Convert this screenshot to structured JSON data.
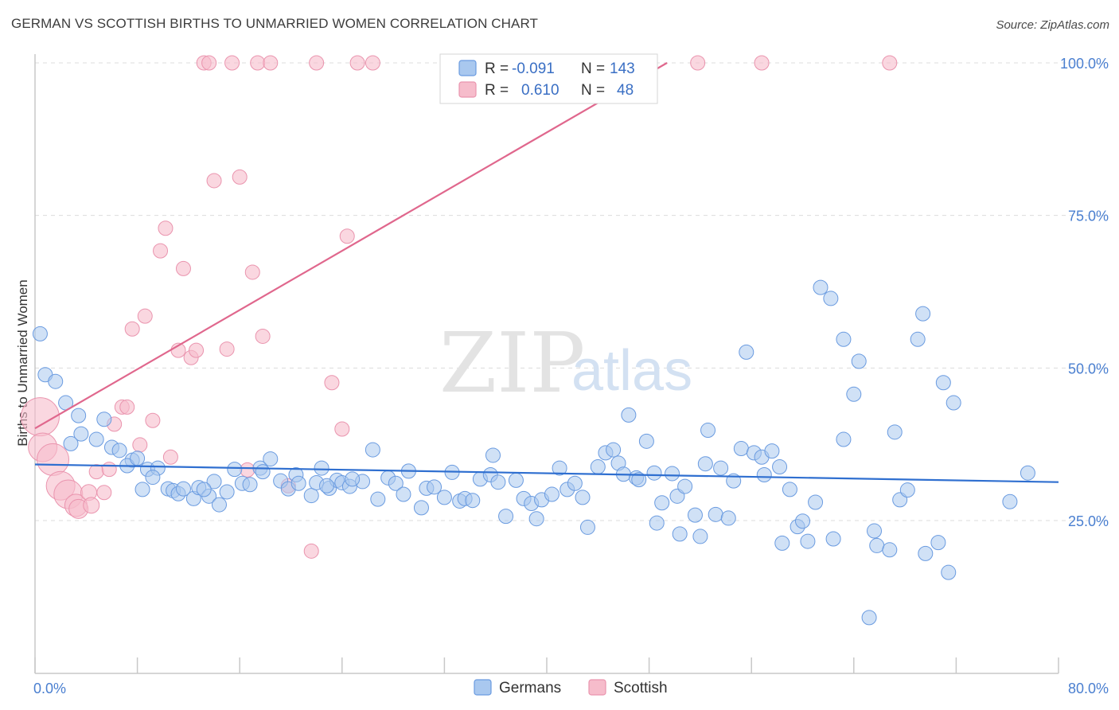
{
  "title": "GERMAN VS SCOTTISH BIRTHS TO UNMARRIED WOMEN CORRELATION CHART",
  "source": "Source: ZipAtlas.com",
  "watermark": {
    "zip": "ZIP",
    "atlas": "atlas"
  },
  "colors": {
    "blue_fill": "#a9c8ef",
    "blue_stroke": "#6a9be0",
    "blue_line": "#2f6fd0",
    "pink_fill": "#f6bccb",
    "pink_stroke": "#ea94ae",
    "pink_line": "#e0678d",
    "grid": "#dcdcdc",
    "tick_text": "#4a7fd0"
  },
  "legend": {
    "rows": [
      {
        "r_label": "R =",
        "r_value": "-0.091",
        "n_label": "N =",
        "n_value": "143",
        "color": "blue"
      },
      {
        "r_label": "R =",
        "r_value": "0.610",
        "n_label": "N =",
        "n_value": "48",
        "color": "pink"
      }
    ]
  },
  "bottom_legend": [
    {
      "label": "Germans",
      "color": "blue"
    },
    {
      "label": "Scottish",
      "color": "pink"
    }
  ],
  "chart_data": {
    "type": "scatter",
    "title": "GERMAN VS SCOTTISH BIRTHS TO UNMARRIED WOMEN CORRELATION CHART",
    "xlabel": "",
    "ylabel": "Births to Unmarried Women",
    "xlim": [
      0,
      80
    ],
    "ylim": [
      0,
      102
    ],
    "x_tick_labels": [
      "0.0%",
      "80.0%"
    ],
    "y_ticks": [
      25,
      50,
      75,
      100
    ],
    "y_tick_labels": [
      "25.0%",
      "50.0%",
      "75.0%",
      "100.0%"
    ],
    "grid": "horizontal dashed",
    "legend_position": "top-center",
    "series": [
      {
        "name": "Germans",
        "color": "blue",
        "R": -0.091,
        "N": 143,
        "trend": {
          "x": [
            0,
            80
          ],
          "y": [
            34.2,
            31.3
          ]
        },
        "points": [
          [
            0.4,
            55.6
          ],
          [
            0.8,
            48.9
          ],
          [
            1.6,
            47.8
          ],
          [
            2.4,
            44.3
          ],
          [
            3.4,
            42.2
          ],
          [
            5.4,
            41.6
          ],
          [
            3.6,
            39.2
          ],
          [
            2.8,
            37.6
          ],
          [
            4.8,
            38.3
          ],
          [
            6.0,
            37.0
          ],
          [
            6.6,
            36.5
          ],
          [
            7.6,
            34.9
          ],
          [
            7.2,
            34.0
          ],
          [
            8.8,
            33.4
          ],
          [
            9.6,
            33.6
          ],
          [
            9.2,
            32.1
          ],
          [
            8.4,
            30.1
          ],
          [
            10.4,
            30.2
          ],
          [
            10.8,
            29.9
          ],
          [
            11.2,
            29.4
          ],
          [
            11.6,
            30.2
          ],
          [
            12.4,
            28.6
          ],
          [
            12.8,
            30.4
          ],
          [
            13.6,
            29.0
          ],
          [
            14.0,
            31.4
          ],
          [
            14.4,
            27.6
          ],
          [
            15.0,
            29.7
          ],
          [
            15.6,
            33.4
          ],
          [
            16.2,
            31.1
          ],
          [
            16.8,
            30.9
          ],
          [
            17.6,
            33.6
          ],
          [
            18.4,
            35.1
          ],
          [
            17.8,
            33.0
          ],
          [
            19.2,
            31.5
          ],
          [
            19.8,
            30.2
          ],
          [
            20.4,
            32.5
          ],
          [
            20.6,
            31.1
          ],
          [
            21.6,
            29.1
          ],
          [
            22.4,
            33.6
          ],
          [
            22.0,
            31.2
          ],
          [
            23.0,
            30.3
          ],
          [
            23.6,
            31.6
          ],
          [
            24.0,
            31.2
          ],
          [
            24.6,
            30.6
          ],
          [
            25.6,
            31.4
          ],
          [
            26.4,
            36.6
          ],
          [
            26.8,
            28.5
          ],
          [
            27.6,
            32.0
          ],
          [
            28.2,
            31.1
          ],
          [
            28.8,
            29.3
          ],
          [
            29.2,
            33.1
          ],
          [
            30.2,
            27.1
          ],
          [
            30.6,
            30.3
          ],
          [
            31.2,
            30.5
          ],
          [
            32.0,
            28.8
          ],
          [
            32.6,
            32.9
          ],
          [
            33.2,
            28.2
          ],
          [
            33.6,
            28.6
          ],
          [
            34.2,
            28.3
          ],
          [
            34.8,
            31.8
          ],
          [
            35.6,
            32.5
          ],
          [
            35.8,
            35.7
          ],
          [
            36.2,
            31.3
          ],
          [
            36.8,
            25.7
          ],
          [
            37.6,
            31.6
          ],
          [
            38.2,
            28.6
          ],
          [
            38.8,
            27.8
          ],
          [
            39.2,
            25.3
          ],
          [
            39.6,
            28.4
          ],
          [
            40.4,
            29.3
          ],
          [
            41.0,
            33.6
          ],
          [
            41.6,
            30.1
          ],
          [
            42.2,
            31.1
          ],
          [
            42.8,
            28.8
          ],
          [
            43.2,
            23.9
          ],
          [
            44.0,
            33.8
          ],
          [
            44.6,
            36.1
          ],
          [
            45.2,
            36.6
          ],
          [
            45.6,
            34.4
          ],
          [
            46.0,
            32.6
          ],
          [
            46.4,
            42.3
          ],
          [
            47.0,
            32.0
          ],
          [
            47.2,
            31.7
          ],
          [
            47.8,
            38.0
          ],
          [
            48.4,
            32.8
          ],
          [
            48.6,
            24.6
          ],
          [
            49.0,
            27.9
          ],
          [
            49.8,
            32.7
          ],
          [
            50.2,
            29.0
          ],
          [
            50.4,
            22.8
          ],
          [
            50.8,
            30.6
          ],
          [
            51.6,
            25.9
          ],
          [
            52.0,
            22.4
          ],
          [
            52.4,
            34.3
          ],
          [
            52.6,
            39.8
          ],
          [
            53.2,
            26.0
          ],
          [
            53.6,
            33.6
          ],
          [
            54.2,
            25.4
          ],
          [
            54.6,
            31.5
          ],
          [
            55.2,
            36.8
          ],
          [
            55.6,
            52.6
          ],
          [
            56.2,
            36.1
          ],
          [
            56.8,
            35.4
          ],
          [
            57.0,
            32.5
          ],
          [
            57.6,
            36.4
          ],
          [
            58.2,
            33.8
          ],
          [
            58.4,
            21.3
          ],
          [
            59.0,
            30.1
          ],
          [
            59.6,
            24.0
          ],
          [
            60.0,
            24.9
          ],
          [
            60.4,
            21.6
          ],
          [
            61.0,
            28.0
          ],
          [
            61.4,
            63.2
          ],
          [
            62.4,
            22.0
          ],
          [
            62.2,
            61.4
          ],
          [
            63.2,
            54.7
          ],
          [
            63.2,
            38.3
          ],
          [
            64.0,
            45.7
          ],
          [
            64.4,
            51.1
          ],
          [
            65.2,
            9.1
          ],
          [
            65.6,
            23.3
          ],
          [
            65.8,
            20.9
          ],
          [
            66.8,
            20.2
          ],
          [
            67.2,
            39.5
          ],
          [
            67.6,
            28.4
          ],
          [
            68.2,
            30.0
          ],
          [
            69.0,
            54.7
          ],
          [
            69.4,
            58.9
          ],
          [
            69.6,
            19.6
          ],
          [
            70.6,
            21.4
          ],
          [
            71.0,
            47.6
          ],
          [
            71.4,
            16.5
          ],
          [
            71.8,
            44.3
          ],
          [
            76.2,
            28.1
          ],
          [
            77.6,
            32.8
          ],
          [
            8.0,
            35.2
          ],
          [
            13.2,
            30.1
          ],
          [
            22.8,
            30.7
          ],
          [
            24.8,
            31.8
          ]
        ]
      },
      {
        "name": "Scottish",
        "color": "pink",
        "R": 0.61,
        "N": 48,
        "trend": {
          "x": [
            0,
            49.4
          ],
          "y": [
            40.1,
            100
          ]
        },
        "points": [
          [
            0.4,
            42.0,
            24
          ],
          [
            0.6,
            37.0,
            18
          ],
          [
            1.4,
            35.0,
            20
          ],
          [
            2.0,
            30.7,
            18
          ],
          [
            2.6,
            29.3,
            18
          ],
          [
            3.2,
            27.5,
            14
          ],
          [
            3.4,
            26.9,
            12
          ],
          [
            4.2,
            29.6,
            10
          ],
          [
            4.4,
            27.5,
            10
          ],
          [
            4.8,
            33.0,
            9
          ],
          [
            5.4,
            29.6,
            9
          ],
          [
            5.8,
            33.4,
            9
          ],
          [
            6.2,
            40.8,
            9
          ],
          [
            6.8,
            43.6,
            9
          ],
          [
            7.2,
            43.6,
            9
          ],
          [
            7.6,
            56.4,
            9
          ],
          [
            8.2,
            37.4,
            9
          ],
          [
            8.6,
            58.5,
            9
          ],
          [
            9.2,
            41.4,
            9
          ],
          [
            9.8,
            69.2,
            9
          ],
          [
            10.2,
            72.9,
            9
          ],
          [
            10.6,
            35.4,
            9
          ],
          [
            11.2,
            52.9,
            9
          ],
          [
            11.6,
            66.3,
            9
          ],
          [
            12.2,
            51.7,
            9
          ],
          [
            12.6,
            52.9,
            9
          ],
          [
            13.2,
            100,
            9
          ],
          [
            13.6,
            100,
            9
          ],
          [
            14.0,
            80.7,
            9
          ],
          [
            15.0,
            53.1,
            9
          ],
          [
            15.4,
            100,
            9
          ],
          [
            16.0,
            81.3,
            9
          ],
          [
            16.6,
            33.3,
            9
          ],
          [
            17.0,
            65.7,
            9
          ],
          [
            17.4,
            100,
            9
          ],
          [
            17.8,
            55.2,
            9
          ],
          [
            18.4,
            100,
            9
          ],
          [
            19.8,
            30.7,
            9
          ],
          [
            21.6,
            20.0,
            9
          ],
          [
            22.0,
            100,
            9
          ],
          [
            23.2,
            47.6,
            9
          ],
          [
            24.0,
            40.0,
            9
          ],
          [
            24.4,
            71.6,
            9
          ],
          [
            25.2,
            100,
            9
          ],
          [
            26.4,
            100,
            9
          ],
          [
            51.8,
            100,
            9
          ],
          [
            56.8,
            100,
            9
          ],
          [
            66.8,
            100,
            9
          ]
        ]
      }
    ]
  }
}
